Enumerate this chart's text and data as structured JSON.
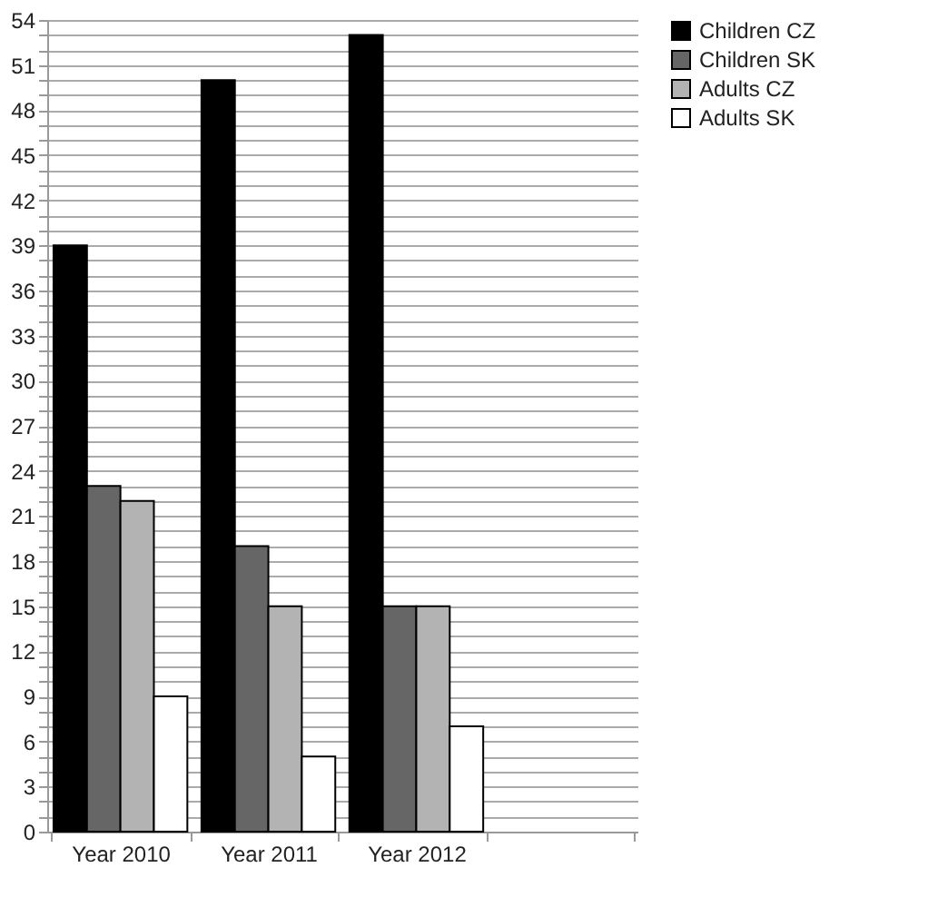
{
  "chart_data": {
    "type": "bar",
    "categories": [
      "Year 2010",
      "Year 2011",
      "Year 2012",
      null
    ],
    "series": [
      {
        "name": "Children CZ",
        "color": "#000000",
        "values": [
          39,
          50,
          53,
          null
        ]
      },
      {
        "name": "Children SK",
        "color": "#666666",
        "values": [
          23,
          19,
          15,
          null
        ]
      },
      {
        "name": "Adults CZ",
        "color": "#b3b3b3",
        "values": [
          22,
          15,
          15,
          null
        ]
      },
      {
        "name": "Adults SK",
        "color": "#ffffff",
        "values": [
          9,
          5,
          7,
          null
        ]
      }
    ],
    "ylim": [
      0,
      54
    ],
    "yticks": [
      0,
      {
        "value": 1,
        "label": null
      },
      {
        "value": 2,
        "label": null
      },
      3,
      {
        "value": 4,
        "label": null
      },
      {
        "value": 5,
        "label": null
      },
      6,
      {
        "value": 7,
        "label": null
      },
      {
        "value": 8,
        "label": null
      },
      9,
      {
        "value": 10,
        "label": null
      },
      {
        "value": 11,
        "label": null
      },
      12,
      {
        "value": 13,
        "label": null
      },
      {
        "value": 14,
        "label": null
      },
      15,
      {
        "value": 16,
        "label": null
      },
      {
        "value": 17,
        "label": null
      },
      18,
      {
        "value": 19,
        "label": null
      },
      {
        "value": 20,
        "label": null
      },
      21,
      {
        "value": 22,
        "label": null
      },
      {
        "value": 23,
        "label": null
      },
      24,
      {
        "value": 25,
        "label": null
      },
      {
        "value": 26,
        "label": null
      },
      27,
      {
        "value": 28,
        "label": null
      },
      {
        "value": 29,
        "label": null
      },
      30,
      {
        "value": 31,
        "label": null
      },
      {
        "value": 32,
        "label": null
      },
      33,
      {
        "value": 34,
        "label": null
      },
      {
        "value": 35,
        "label": null
      },
      36,
      {
        "value": 37,
        "label": null
      },
      {
        "value": 38,
        "label": null
      },
      39,
      {
        "value": 40,
        "label": null
      },
      {
        "value": 41,
        "label": null
      },
      42,
      {
        "value": 43,
        "label": null
      },
      {
        "value": 44,
        "label": null
      },
      45,
      {
        "value": 46,
        "label": null
      },
      {
        "value": 47,
        "label": null
      },
      48,
      {
        "value": 49,
        "label": null
      },
      {
        "value": 50,
        "label": null
      },
      51,
      {
        "value": 52,
        "label": null
      },
      {
        "value": 53,
        "label": null
      },
      54
    ],
    "grid": "y",
    "legend": "right"
  }
}
